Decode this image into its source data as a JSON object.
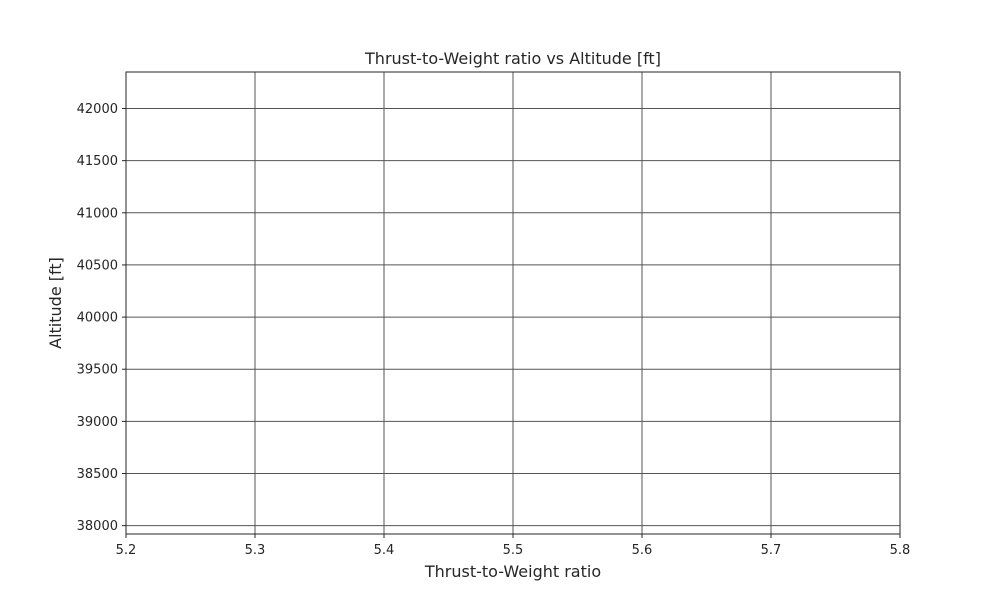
{
  "chart_data": {
    "type": "line",
    "title": "Thrust-to-Weight ratio vs Altitude [ft]",
    "xlabel": "Thrust-to-Weight ratio",
    "ylabel": "Altitude [ft]",
    "xlim": [
      5.2,
      5.8
    ],
    "ylim": [
      37920,
      42350
    ],
    "x_ticks": [
      5.2,
      5.3,
      5.4,
      5.5,
      5.6,
      5.7,
      5.8
    ],
    "x_tick_labels": [
      "5.2",
      "5.3",
      "5.4",
      "5.5",
      "5.6",
      "5.7",
      "5.8"
    ],
    "y_ticks": [
      38000,
      38500,
      39000,
      39500,
      40000,
      40500,
      41000,
      41500,
      42000
    ],
    "y_tick_labels": [
      "38000",
      "38500",
      "39000",
      "39500",
      "40000",
      "40500",
      "41000",
      "41500",
      "42000"
    ],
    "grid": true,
    "series": [],
    "colors": {
      "grid": "#555555",
      "spine": "#262626",
      "text": "#262626"
    }
  }
}
